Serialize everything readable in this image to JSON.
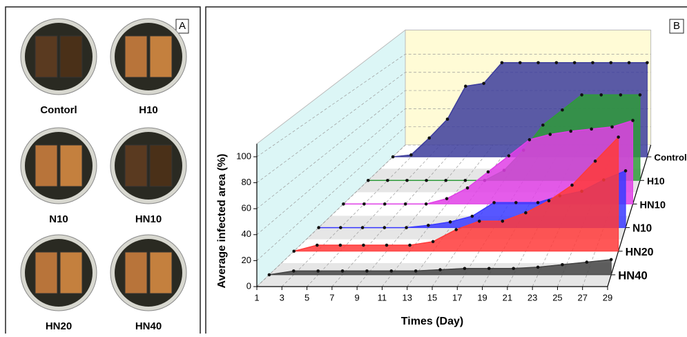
{
  "panel_a": {
    "label": "A",
    "samples": [
      "Contorl",
      "H10",
      "N10",
      "HN10",
      "HN20",
      "HN40"
    ]
  },
  "chart_data": {
    "type": "area",
    "panel_label": "B",
    "x_label": "Times (Day)",
    "y_label": "Average infected area (%)",
    "x": [
      1,
      3,
      5,
      7,
      9,
      11,
      13,
      15,
      17,
      19,
      21,
      23,
      25,
      27,
      29
    ],
    "xlim": [
      1,
      29
    ],
    "xticks": [
      1,
      3,
      5,
      7,
      9,
      11,
      13,
      15,
      17,
      19,
      21,
      23,
      25,
      27,
      29
    ],
    "ylim": [
      0,
      110
    ],
    "yticks": [
      0,
      20,
      40,
      60,
      80,
      100
    ],
    "grid": true,
    "series": [
      {
        "name": "Control",
        "color": "#3d3d9c",
        "values": [
          0,
          2,
          20,
          40,
          75,
          78,
          100,
          100,
          100,
          100,
          100,
          100,
          100,
          100,
          100
        ]
      },
      {
        "name": "H10",
        "color": "#2f9a3a",
        "values": [
          0,
          0,
          0,
          0,
          0,
          0,
          0,
          10,
          30,
          55,
          70,
          85,
          85,
          85,
          85
        ]
      },
      {
        "name": "HN10",
        "color": "#e040e6",
        "values": [
          0,
          0,
          0,
          0,
          0,
          5,
          15,
          30,
          45,
          60,
          65,
          68,
          70,
          72,
          78
        ]
      },
      {
        "name": "N10",
        "color": "#3a3aff",
        "values": [
          0,
          0,
          0,
          0,
          0,
          2,
          5,
          10,
          22,
          22,
          22,
          28,
          32,
          42,
          50
        ]
      },
      {
        "name": "HN20",
        "color": "#ff3a3a",
        "values": [
          0,
          5,
          5,
          5,
          5,
          5,
          8,
          18,
          25,
          25,
          32,
          42,
          55,
          75,
          95
        ]
      },
      {
        "name": "HN40",
        "color": "#444444",
        "values": [
          0,
          3,
          3,
          3,
          3,
          3,
          3,
          4,
          5,
          5,
          5,
          6,
          8,
          10,
          12
        ]
      }
    ]
  }
}
